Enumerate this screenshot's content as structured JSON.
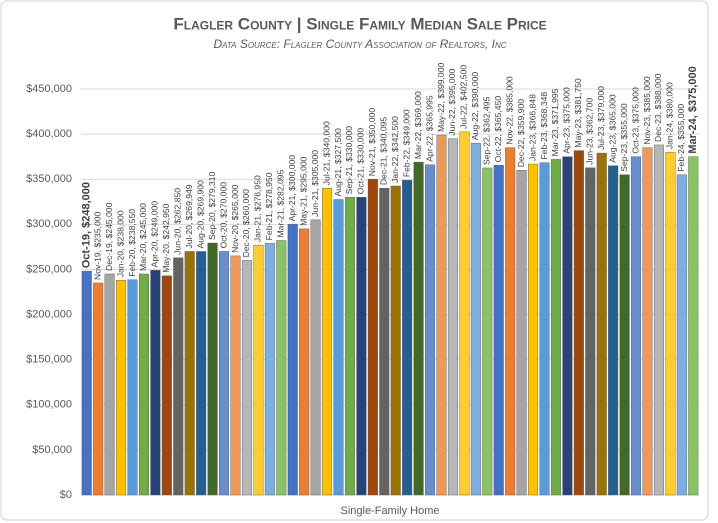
{
  "chart_data": {
    "type": "bar",
    "title": "Flagler County | Single Family Median Sale Price",
    "subtitle": "Data Source:  Flagler County Association of Realtors, Inc",
    "x_label": "Single-Family Home",
    "values": [
      248000,
      235000,
      245000,
      238000,
      238550,
      245000,
      249000,
      242950,
      262850,
      269949,
      269900,
      279310,
      270000,
      265000,
      260000,
      276950,
      278950,
      282095,
      300000,
      295000,
      305000,
      340000,
      327500,
      330000,
      330000,
      350000,
      340095,
      342500,
      349000,
      369000,
      365995,
      399000,
      395000,
      402500,
      390000,
      362495,
      365450,
      385000,
      359900,
      366848,
      368348,
      371995,
      375000,
      381750,
      362700,
      379000,
      365000,
      355000,
      375000,
      385000,
      388000,
      380000,
      355000,
      375000
    ],
    "value_labels": [
      "Oct-19, $248,000",
      "Nov-19, $235,000",
      "Dec-19, $245,000",
      "Jan-20, $238,000",
      "Feb-20, $238,550",
      "Mar-20, $245,000",
      "Apr-20, $249,000",
      "May-20, $242,950",
      "Jun-20, $262,850",
      "Jul-20, $269,949",
      "Aug-20, $269,900",
      "Sep-20, $279,310",
      "Oct-20, $270,000",
      "Nov-20, $265,000",
      "Dec-20, $260,000",
      "Jan-21, $276,950",
      "Feb-21, $278,950",
      "Mar-21, $282,095",
      "Apr-21, $300,000",
      "May-21, $295,000",
      "Jun-21, $305,000",
      "Jul-21, $340,000",
      "Aug-21, $327,500",
      "Sep-21, $330,000",
      "Oct-21, $330,000",
      "Nov-21, $350,000",
      "Dec-21, $340,095",
      "Jan-22, $342,500",
      "Feb-22, $349,000",
      "Mar-22, $369,000",
      "Apr-22, $365,995",
      "May-22, $399,000",
      "Jun-22, $395,000",
      "Jul-22, $402,500",
      "Aug-22, $390,000",
      "Sep-22, $362,495",
      "Oct-22, $365,450",
      "Nov-22, $385,000",
      "Dec-22, $359,900",
      "Jan-23, $366,848",
      "Feb-23, $368,348",
      "Mar-23, $371,995",
      "Apr-23, $375,000",
      "May-23, $381,750",
      "Jun-23, $362,700",
      "Jul-23, $379,000",
      "Aug-23, $365,000",
      "Sep-23, $355,000",
      "Oct-23, $375,000",
      "Nov-23, $385,000",
      "Dec-23, $388,000",
      "Jan-24, $380,000",
      "Feb-24, $355,000",
      "Mar-24, $375,000"
    ],
    "colors": [
      "#4472c4",
      "#ed7d31",
      "#a5a5a5",
      "#ffc000",
      "#5b9bd5",
      "#70ad47",
      "#264478",
      "#9e480e",
      "#636363",
      "#997300",
      "#255e91",
      "#43682b",
      "#698ed0",
      "#f1975a",
      "#b7b7b7",
      "#ffcd33",
      "#7cafdd",
      "#8cc168"
    ],
    "ylim": [
      0,
      450000
    ],
    "yticks": [
      {
        "value": 0,
        "label": "$0"
      },
      {
        "value": 50000,
        "label": "$50,000"
      },
      {
        "value": 100000,
        "label": "$100,000"
      },
      {
        "value": 150000,
        "label": "$150,000"
      },
      {
        "value": 200000,
        "label": "$200,000"
      },
      {
        "value": 250000,
        "label": "$250,000"
      },
      {
        "value": 300000,
        "label": "$300,000"
      },
      {
        "value": 350000,
        "label": "$350,000"
      },
      {
        "value": 400000,
        "label": "$400,000"
      },
      {
        "value": 450000,
        "label": "$450,000"
      }
    ],
    "grid": true
  }
}
